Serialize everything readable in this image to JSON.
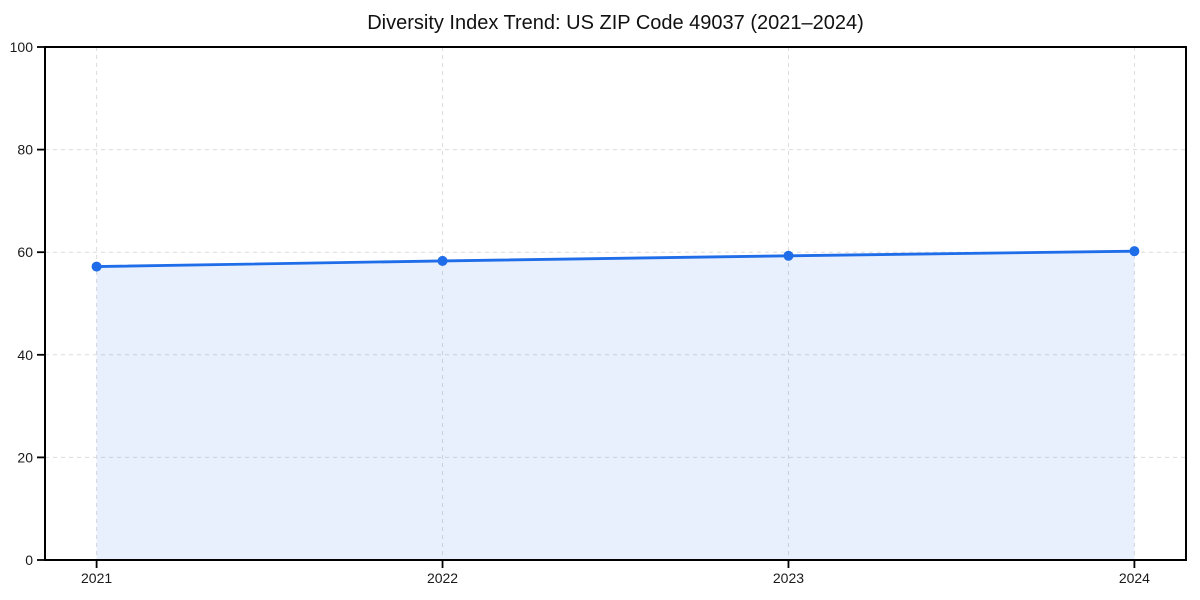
{
  "chart_data": {
    "type": "line",
    "title": "Diversity Index Trend: US ZIP Code 49037 (2021–2024)",
    "x": [
      "2021",
      "2022",
      "2023",
      "2024"
    ],
    "series": [
      {
        "name": "Diversity Index",
        "values": [
          57.2,
          58.3,
          59.3,
          60.2
        ]
      }
    ],
    "xlabel": "",
    "ylabel": "",
    "ylim": [
      0,
      100
    ],
    "yticks": [
      0,
      20,
      40,
      60,
      80,
      100
    ],
    "grid": "dashed-horizontal-and-vertical",
    "legend": "none",
    "area_fill": true,
    "markers": true,
    "colors": {
      "line": "#1f6de8",
      "marker": "#1f6de8",
      "area_fill": "rgba(31,109,232,0.10)",
      "grid": "#dcdcdc",
      "axis": "#000000",
      "tick_text": "#1a1a1a",
      "title_text": "#111111",
      "background": "#ffffff"
    }
  }
}
